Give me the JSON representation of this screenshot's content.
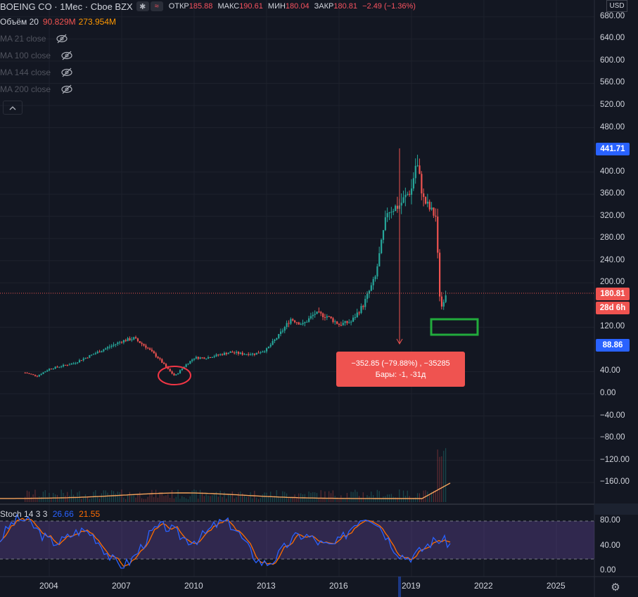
{
  "header": {
    "symbol": "BOEING CO · 1Мес · Cboe BZX",
    "chip_snowflake": "✱",
    "chip_wave": "≈",
    "open_label": "ОТКР",
    "open_value": "185.88",
    "high_label": "МАКС",
    "high_value": "190.61",
    "low_label": "МИН",
    "low_value": "180.04",
    "close_label": "ЗАКР",
    "close_value": "180.81",
    "change": "−2.49 (−1.36%)"
  },
  "legend": {
    "volume_label": "Объём 20",
    "volume_v1": "90.829M",
    "volume_v2": "273.954M",
    "ma": [
      "MA 21 close",
      "MA 100 close",
      "MA 144 close",
      "MA 200 close"
    ],
    "collapse_icon": "chevron-up-icon"
  },
  "currency": "USD",
  "price_axis": [
    "680.00",
    "640.00",
    "600.00",
    "560.00",
    "520.00",
    "480.00",
    "400.00",
    "360.00",
    "320.00",
    "280.00",
    "240.00",
    "200.00",
    "120.00",
    "40.00",
    "0.00",
    "−40.00",
    "−80.00",
    "−120.00",
    "−160.00"
  ],
  "badges": {
    "high": "441.71",
    "last": "180.81",
    "countdown": "28d 6h",
    "low": "88.86"
  },
  "measure_tooltip": {
    "line1": "−352.85 (−79.88%) , −35285",
    "line2": "Бары: -1, -31д"
  },
  "stoch": {
    "label": "Stoch 14 3 3",
    "k": "26.66",
    "d": "21.55",
    "axis": [
      "80.00",
      "40.00",
      "0.00"
    ]
  },
  "time_axis": [
    "2004",
    "2007",
    "2010",
    "2013",
    "2016",
    "2019",
    "2022",
    "2025"
  ],
  "colors": {
    "up": "#26a69a",
    "down": "#ef5350",
    "bg": "#131722",
    "stoch_k": "#2962ff",
    "stoch_d": "#ff6d00",
    "stoch_band": "#7e57c2"
  },
  "chart_data": {
    "type": "candlestick",
    "x_unit": "year",
    "y_unit": "USD",
    "y_range": [
      -190,
      700
    ],
    "series_close_approx": [
      [
        2003.0,
        38
      ],
      [
        2003.5,
        32
      ],
      [
        2004.0,
        45
      ],
      [
        2005.0,
        55
      ],
      [
        2006.0,
        75
      ],
      [
        2006.5,
        85
      ],
      [
        2007.0,
        95
      ],
      [
        2007.5,
        100
      ],
      [
        2008.0,
        85
      ],
      [
        2008.5,
        65
      ],
      [
        2009.0,
        40
      ],
      [
        2009.2,
        32
      ],
      [
        2009.6,
        50
      ],
      [
        2010.0,
        65
      ],
      [
        2010.5,
        65
      ],
      [
        2011.0,
        70
      ],
      [
        2011.5,
        75
      ],
      [
        2012.0,
        72
      ],
      [
        2012.5,
        72
      ],
      [
        2013.0,
        80
      ],
      [
        2013.5,
        105
      ],
      [
        2014.0,
        135
      ],
      [
        2014.5,
        125
      ],
      [
        2015.0,
        145
      ],
      [
        2015.5,
        140
      ],
      [
        2016.0,
        125
      ],
      [
        2016.5,
        130
      ],
      [
        2017.0,
        160
      ],
      [
        2017.5,
        210
      ],
      [
        2018.0,
        330
      ],
      [
        2018.5,
        340
      ],
      [
        2019.0,
        370
      ],
      [
        2019.2,
        420
      ],
      [
        2019.5,
        350
      ],
      [
        2019.8,
        330
      ],
      [
        2020.0,
        320
      ],
      [
        2020.2,
        150
      ],
      [
        2020.4,
        180.81
      ]
    ]
  }
}
